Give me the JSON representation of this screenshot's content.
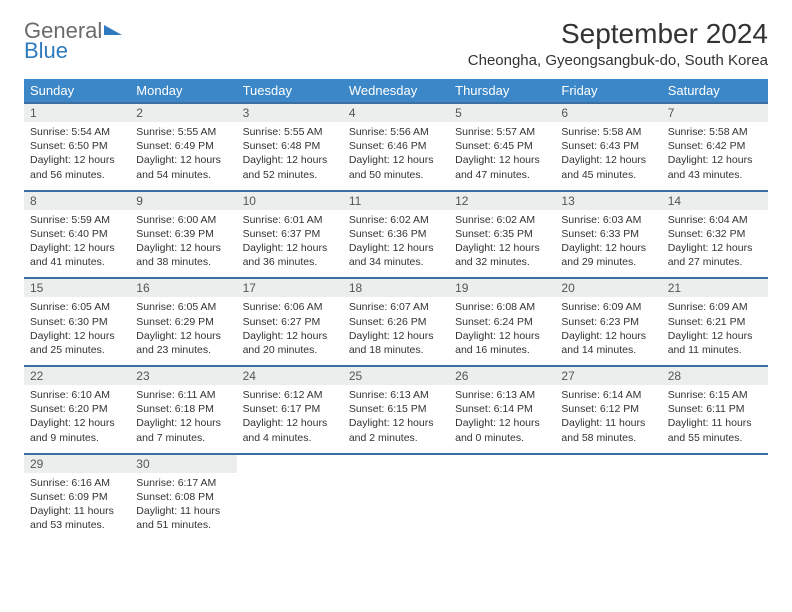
{
  "logo": {
    "part1": "General",
    "part2": "Blue"
  },
  "title": "September 2024",
  "location": "Cheongha, Gyeongsangbuk-do, South Korea",
  "colors": {
    "header_bg": "#3b87c8",
    "header_text": "#ffffff",
    "daynum_bg": "#eceeee",
    "row_border": "#3b6fa0",
    "logo_blue": "#2f7bbf",
    "logo_gray": "#6b6b6b",
    "text": "#333333",
    "background": "#ffffff"
  },
  "weekdays": [
    "Sunday",
    "Monday",
    "Tuesday",
    "Wednesday",
    "Thursday",
    "Friday",
    "Saturday"
  ],
  "weeks": [
    [
      {
        "n": "1",
        "sr": "5:54 AM",
        "ss": "6:50 PM",
        "dl": "12 hours and 56 minutes."
      },
      {
        "n": "2",
        "sr": "5:55 AM",
        "ss": "6:49 PM",
        "dl": "12 hours and 54 minutes."
      },
      {
        "n": "3",
        "sr": "5:55 AM",
        "ss": "6:48 PM",
        "dl": "12 hours and 52 minutes."
      },
      {
        "n": "4",
        "sr": "5:56 AM",
        "ss": "6:46 PM",
        "dl": "12 hours and 50 minutes."
      },
      {
        "n": "5",
        "sr": "5:57 AM",
        "ss": "6:45 PM",
        "dl": "12 hours and 47 minutes."
      },
      {
        "n": "6",
        "sr": "5:58 AM",
        "ss": "6:43 PM",
        "dl": "12 hours and 45 minutes."
      },
      {
        "n": "7",
        "sr": "5:58 AM",
        "ss": "6:42 PM",
        "dl": "12 hours and 43 minutes."
      }
    ],
    [
      {
        "n": "8",
        "sr": "5:59 AM",
        "ss": "6:40 PM",
        "dl": "12 hours and 41 minutes."
      },
      {
        "n": "9",
        "sr": "6:00 AM",
        "ss": "6:39 PM",
        "dl": "12 hours and 38 minutes."
      },
      {
        "n": "10",
        "sr": "6:01 AM",
        "ss": "6:37 PM",
        "dl": "12 hours and 36 minutes."
      },
      {
        "n": "11",
        "sr": "6:02 AM",
        "ss": "6:36 PM",
        "dl": "12 hours and 34 minutes."
      },
      {
        "n": "12",
        "sr": "6:02 AM",
        "ss": "6:35 PM",
        "dl": "12 hours and 32 minutes."
      },
      {
        "n": "13",
        "sr": "6:03 AM",
        "ss": "6:33 PM",
        "dl": "12 hours and 29 minutes."
      },
      {
        "n": "14",
        "sr": "6:04 AM",
        "ss": "6:32 PM",
        "dl": "12 hours and 27 minutes."
      }
    ],
    [
      {
        "n": "15",
        "sr": "6:05 AM",
        "ss": "6:30 PM",
        "dl": "12 hours and 25 minutes."
      },
      {
        "n": "16",
        "sr": "6:05 AM",
        "ss": "6:29 PM",
        "dl": "12 hours and 23 minutes."
      },
      {
        "n": "17",
        "sr": "6:06 AM",
        "ss": "6:27 PM",
        "dl": "12 hours and 20 minutes."
      },
      {
        "n": "18",
        "sr": "6:07 AM",
        "ss": "6:26 PM",
        "dl": "12 hours and 18 minutes."
      },
      {
        "n": "19",
        "sr": "6:08 AM",
        "ss": "6:24 PM",
        "dl": "12 hours and 16 minutes."
      },
      {
        "n": "20",
        "sr": "6:09 AM",
        "ss": "6:23 PM",
        "dl": "12 hours and 14 minutes."
      },
      {
        "n": "21",
        "sr": "6:09 AM",
        "ss": "6:21 PM",
        "dl": "12 hours and 11 minutes."
      }
    ],
    [
      {
        "n": "22",
        "sr": "6:10 AM",
        "ss": "6:20 PM",
        "dl": "12 hours and 9 minutes."
      },
      {
        "n": "23",
        "sr": "6:11 AM",
        "ss": "6:18 PM",
        "dl": "12 hours and 7 minutes."
      },
      {
        "n": "24",
        "sr": "6:12 AM",
        "ss": "6:17 PM",
        "dl": "12 hours and 4 minutes."
      },
      {
        "n": "25",
        "sr": "6:13 AM",
        "ss": "6:15 PM",
        "dl": "12 hours and 2 minutes."
      },
      {
        "n": "26",
        "sr": "6:13 AM",
        "ss": "6:14 PM",
        "dl": "12 hours and 0 minutes."
      },
      {
        "n": "27",
        "sr": "6:14 AM",
        "ss": "6:12 PM",
        "dl": "11 hours and 58 minutes."
      },
      {
        "n": "28",
        "sr": "6:15 AM",
        "ss": "6:11 PM",
        "dl": "11 hours and 55 minutes."
      }
    ],
    [
      {
        "n": "29",
        "sr": "6:16 AM",
        "ss": "6:09 PM",
        "dl": "11 hours and 53 minutes."
      },
      {
        "n": "30",
        "sr": "6:17 AM",
        "ss": "6:08 PM",
        "dl": "11 hours and 51 minutes."
      },
      null,
      null,
      null,
      null,
      null
    ]
  ],
  "labels": {
    "sunrise": "Sunrise:",
    "sunset": "Sunset:",
    "daylight": "Daylight:"
  }
}
